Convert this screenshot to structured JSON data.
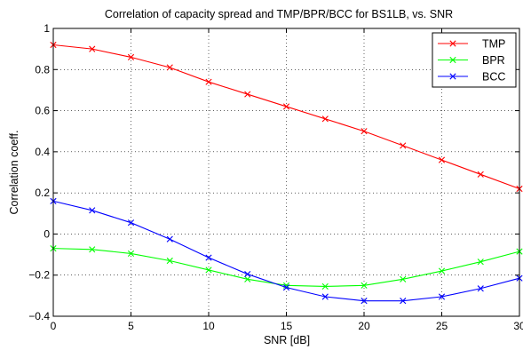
{
  "chart_data": {
    "type": "line",
    "title": "Correlation of capacity spread and TMP/BPR/BCC for BS1LB, vs. SNR",
    "xlabel": "SNR [dB]",
    "ylabel": "Correlation coeff.",
    "xlim": [
      0,
      30
    ],
    "ylim": [
      -0.4,
      1
    ],
    "xticks": [
      0,
      5,
      10,
      15,
      20,
      25,
      30
    ],
    "yticks": [
      -0.4,
      -0.2,
      0,
      0.2,
      0.4,
      0.6,
      0.8,
      1
    ],
    "xtick_labels": [
      "0",
      "5",
      "10",
      "15",
      "20",
      "25",
      "30"
    ],
    "ytick_labels": [
      "−0.4",
      "−0.2",
      "0",
      "0.2",
      "0.4",
      "0.6",
      "0.8",
      "1"
    ],
    "grid": true,
    "legend_position": "top-right",
    "x": [
      0,
      2.5,
      5,
      7.5,
      10,
      12.5,
      15,
      17.5,
      20,
      22.5,
      25,
      27.5,
      30
    ],
    "series": [
      {
        "name": "TMP",
        "color": "#ff0000",
        "marker": "x",
        "values": [
          0.92,
          0.9,
          0.86,
          0.81,
          0.74,
          0.68,
          0.62,
          0.56,
          0.5,
          0.43,
          0.36,
          0.29,
          0.22
        ]
      },
      {
        "name": "BPR",
        "color": "#00ff00",
        "marker": "x",
        "values": [
          -0.07,
          -0.075,
          -0.095,
          -0.13,
          -0.175,
          -0.22,
          -0.25,
          -0.255,
          -0.25,
          -0.22,
          -0.18,
          -0.135,
          -0.085
        ]
      },
      {
        "name": "BCC",
        "color": "#0000ff",
        "marker": "x",
        "values": [
          0.16,
          0.115,
          0.055,
          -0.025,
          -0.115,
          -0.195,
          -0.26,
          -0.305,
          -0.325,
          -0.325,
          -0.305,
          -0.265,
          -0.215
        ]
      }
    ]
  }
}
